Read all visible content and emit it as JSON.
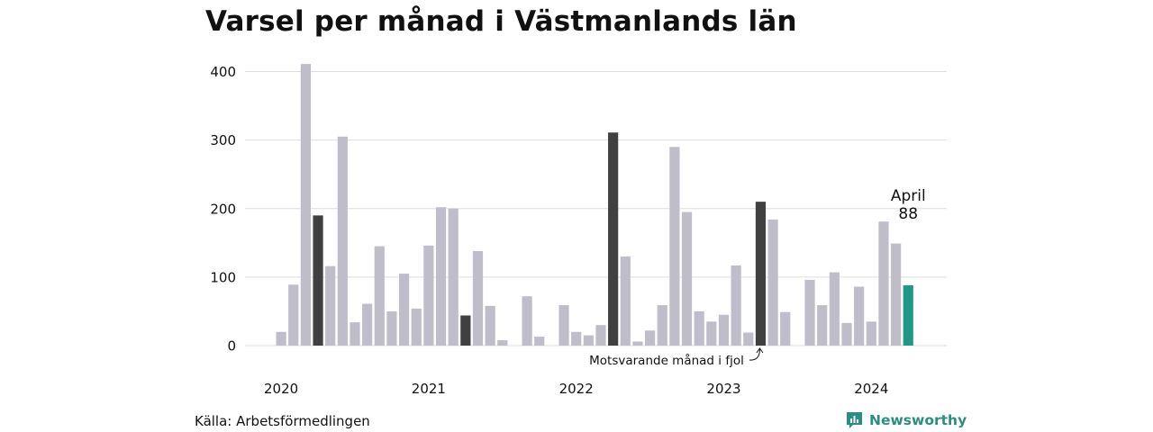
{
  "title": "Varsel per månad i Västmanlands län",
  "source": "Källa: Arbetsförmedlingen",
  "brand": {
    "name": "Newsworthy",
    "icon": "newsworthy-logo-icon",
    "color": "#2a8f80"
  },
  "colors": {
    "default": "#bfbdca",
    "highlight": "#404040",
    "latest": "#1f9888",
    "grid": "#dddddd"
  },
  "chart_data": {
    "type": "bar",
    "ylim": [
      0,
      400
    ],
    "yticks": [
      0,
      100,
      200,
      300,
      400
    ],
    "x_year_labels": [
      "2020",
      "2021",
      "2022",
      "2023",
      "2024"
    ],
    "months": [
      {
        "year": 2020,
        "month": 1,
        "value": 20
      },
      {
        "year": 2020,
        "month": 2,
        "value": 89
      },
      {
        "year": 2020,
        "month": 3,
        "value": 411
      },
      {
        "year": 2020,
        "month": 4,
        "value": 190,
        "highlight": true
      },
      {
        "year": 2020,
        "month": 5,
        "value": 116
      },
      {
        "year": 2020,
        "month": 6,
        "value": 305
      },
      {
        "year": 2020,
        "month": 7,
        "value": 34
      },
      {
        "year": 2020,
        "month": 8,
        "value": 61
      },
      {
        "year": 2020,
        "month": 9,
        "value": 145
      },
      {
        "year": 2020,
        "month": 10,
        "value": 50
      },
      {
        "year": 2020,
        "month": 11,
        "value": 105
      },
      {
        "year": 2020,
        "month": 12,
        "value": 54
      },
      {
        "year": 2021,
        "month": 1,
        "value": 146
      },
      {
        "year": 2021,
        "month": 2,
        "value": 202
      },
      {
        "year": 2021,
        "month": 3,
        "value": 200
      },
      {
        "year": 2021,
        "month": 4,
        "value": 44,
        "highlight": true
      },
      {
        "year": 2021,
        "month": 5,
        "value": 138
      },
      {
        "year": 2021,
        "month": 6,
        "value": 58
      },
      {
        "year": 2021,
        "month": 7,
        "value": 8
      },
      {
        "year": 2021,
        "month": 8,
        "value": 0
      },
      {
        "year": 2021,
        "month": 9,
        "value": 72
      },
      {
        "year": 2021,
        "month": 10,
        "value": 13
      },
      {
        "year": 2021,
        "month": 11,
        "value": 0
      },
      {
        "year": 2021,
        "month": 12,
        "value": 59
      },
      {
        "year": 2022,
        "month": 1,
        "value": 20
      },
      {
        "year": 2022,
        "month": 2,
        "value": 15
      },
      {
        "year": 2022,
        "month": 3,
        "value": 30
      },
      {
        "year": 2022,
        "month": 4,
        "value": 311,
        "highlight": true
      },
      {
        "year": 2022,
        "month": 5,
        "value": 130
      },
      {
        "year": 2022,
        "month": 6,
        "value": 6
      },
      {
        "year": 2022,
        "month": 7,
        "value": 22
      },
      {
        "year": 2022,
        "month": 8,
        "value": 59
      },
      {
        "year": 2022,
        "month": 9,
        "value": 290
      },
      {
        "year": 2022,
        "month": 10,
        "value": 195
      },
      {
        "year": 2022,
        "month": 11,
        "value": 50
      },
      {
        "year": 2022,
        "month": 12,
        "value": 35
      },
      {
        "year": 2023,
        "month": 1,
        "value": 45
      },
      {
        "year": 2023,
        "month": 2,
        "value": 117
      },
      {
        "year": 2023,
        "month": 3,
        "value": 19
      },
      {
        "year": 2023,
        "month": 4,
        "value": 210,
        "highlight": true
      },
      {
        "year": 2023,
        "month": 5,
        "value": 184
      },
      {
        "year": 2023,
        "month": 6,
        "value": 49
      },
      {
        "year": 2023,
        "month": 7,
        "value": 0
      },
      {
        "year": 2023,
        "month": 8,
        "value": 96
      },
      {
        "year": 2023,
        "month": 9,
        "value": 59
      },
      {
        "year": 2023,
        "month": 10,
        "value": 107
      },
      {
        "year": 2023,
        "month": 11,
        "value": 33
      },
      {
        "year": 2023,
        "month": 12,
        "value": 86
      },
      {
        "year": 2024,
        "month": 1,
        "value": 35
      },
      {
        "year": 2024,
        "month": 2,
        "value": 181
      },
      {
        "year": 2024,
        "month": 3,
        "value": 149
      },
      {
        "year": 2024,
        "month": 4,
        "value": 88,
        "latest": true
      }
    ],
    "annotation": "Motsvarande månad i fjol",
    "last_label": {
      "month": "April",
      "value": "88"
    },
    "grid": true,
    "legend": "none"
  }
}
